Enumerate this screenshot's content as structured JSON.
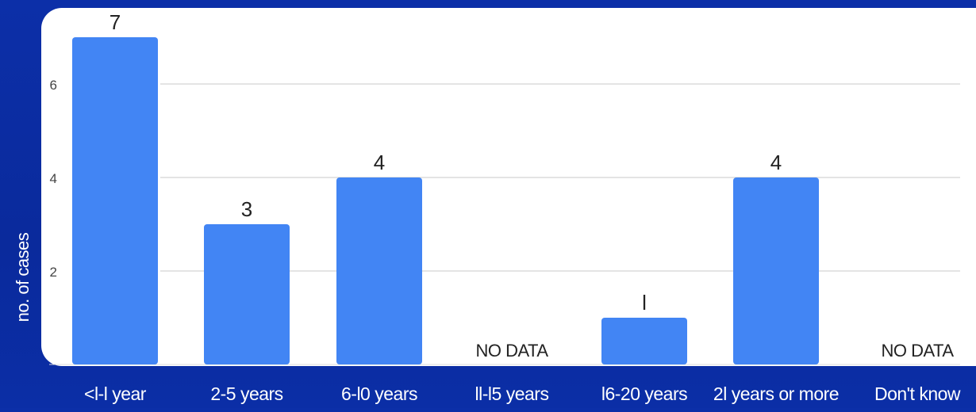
{
  "chart_data": {
    "type": "bar",
    "categories": [
      "<l-l year",
      "2-5 years",
      "6-l0 years",
      "ll-l5 years",
      "l6-20 years",
      "2l years or more",
      "Don't know"
    ],
    "values": [
      7,
      3,
      4,
      null,
      1,
      4,
      null
    ],
    "data_labels": [
      "7",
      "3",
      "4",
      "NO DATA",
      "l",
      "4",
      "NO DATA"
    ],
    "ylabel": "no. of cases",
    "xlabel": "",
    "yticks": [
      2,
      4,
      6
    ],
    "ylim": [
      0,
      7.5
    ],
    "grid": true,
    "colors": {
      "bar": "#4285f4",
      "panel": "#ffffff",
      "background": "#0b2ea6",
      "gridline": "#dcdcdc",
      "label_dark": "#222222",
      "label_light": "#ffffff"
    }
  }
}
